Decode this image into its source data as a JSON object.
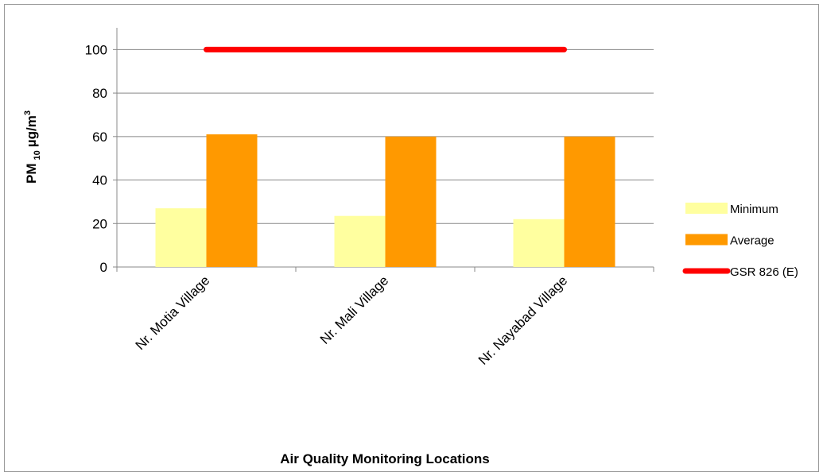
{
  "chart_data": {
    "type": "bar",
    "ylabel": [
      "PM",
      "10",
      "µg/m",
      "3"
    ],
    "xlabel": "Air Quality Monitoring Locations",
    "categories": [
      "Nr. Motia Village",
      "Nr. Mali Village",
      "Nr. Nayabad Village"
    ],
    "series": [
      {
        "name": "Minimum",
        "color": "#ffff9f",
        "type": "bar",
        "values": [
          27,
          23.5,
          22
        ]
      },
      {
        "name": "Average",
        "color": "#ff9900",
        "type": "bar",
        "values": [
          61,
          60,
          60
        ]
      },
      {
        "name": "GSR 826 (E)",
        "color": "#ff0000",
        "type": "line",
        "values": [
          100,
          100,
          100
        ]
      }
    ],
    "ylim": [
      0,
      110
    ],
    "yticks": [
      0,
      20,
      40,
      60,
      80,
      100
    ],
    "grid": true,
    "legend": "right"
  }
}
